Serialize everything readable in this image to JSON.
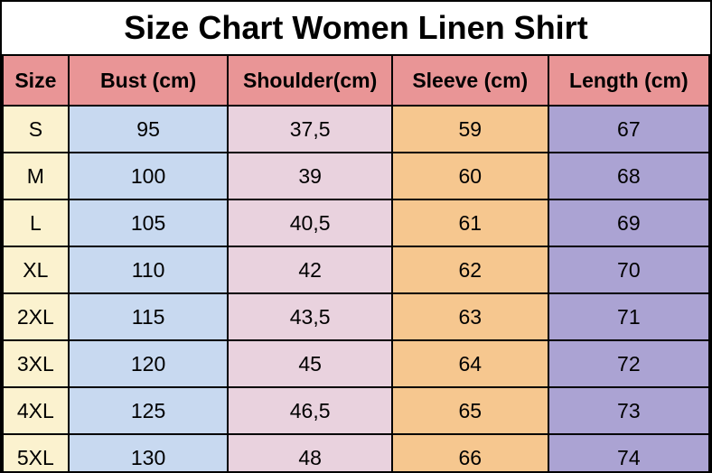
{
  "title": "Size Chart Women Linen Shirt",
  "colors": {
    "title_bg": "#ffffff",
    "header_bg": "#e99596",
    "size_col_bg": "#fbf2cf",
    "bust_col_bg": "#c8d9f0",
    "shoulder_col_bg": "#e9d2de",
    "sleeve_col_bg": "#f6c78f",
    "length_col_bg": "#aba3d3",
    "border": "#000000",
    "text": "#000000"
  },
  "chart_data": {
    "type": "table",
    "title": "Size Chart Women Linen Shirt",
    "columns": [
      "Size",
      "Bust (cm)",
      "Shoulder(cm)",
      "Sleeve (cm)",
      "Length (cm)"
    ],
    "rows": [
      [
        "S",
        "95",
        "37,5",
        "59",
        "67"
      ],
      [
        "M",
        "100",
        "39",
        "60",
        "68"
      ],
      [
        "L",
        "105",
        "40,5",
        "61",
        "69"
      ],
      [
        "XL",
        "110",
        "42",
        "62",
        "70"
      ],
      [
        "2XL",
        "115",
        "43,5",
        "63",
        "71"
      ],
      [
        "3XL",
        "120",
        "45",
        "64",
        "72"
      ],
      [
        "4XL",
        "125",
        "46,5",
        "65",
        "73"
      ],
      [
        "5XL",
        "130",
        "48",
        "66",
        "74"
      ]
    ]
  }
}
